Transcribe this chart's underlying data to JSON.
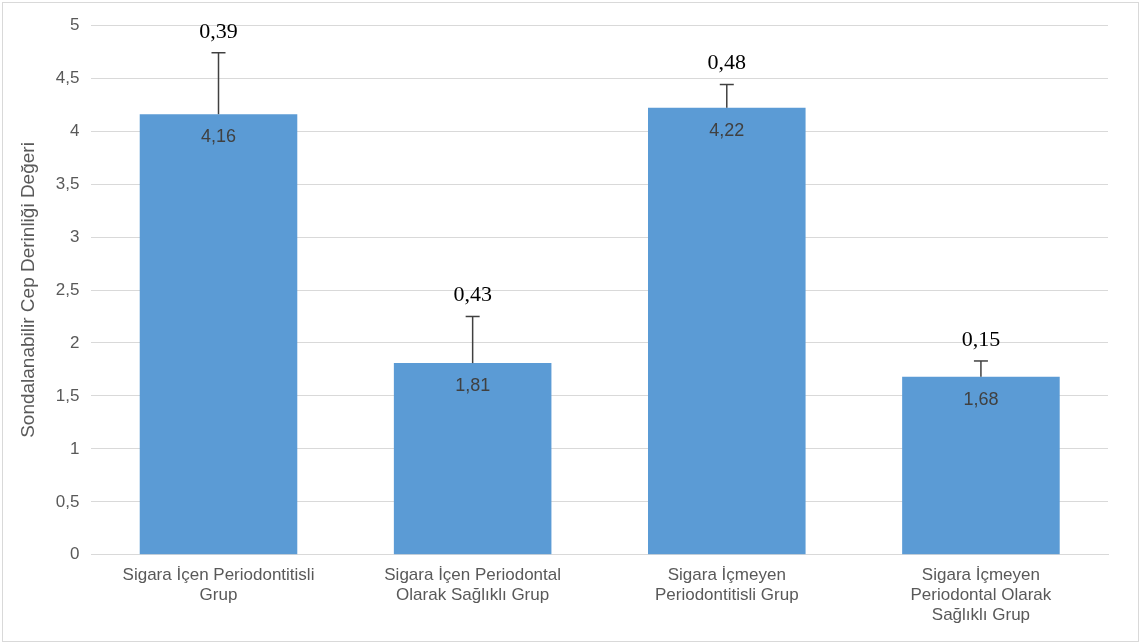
{
  "chart_data": {
    "type": "bar",
    "ylabel": "Sondalanabilir Cep Derinliği Değeri",
    "categories": [
      "Sigara İçen Periodontitisli Grup",
      "Sigara İçen Periodontal Olarak Sağlıklı Grup",
      "Sigara İçmeyen Periodontitisli Grup",
      "Sigara İçmeyen Periodontal Olarak Sağlıklı Grup"
    ],
    "values": [
      4.16,
      1.81,
      4.22,
      1.68
    ],
    "value_labels": [
      "4,16",
      "1,81",
      "4,22",
      "1,68"
    ],
    "color": "#5b9bd5",
    "errors": [
      [
        4.16,
        4.74
      ],
      [
        1.81,
        2.25
      ],
      [
        4.22,
        4.44
      ],
      [
        1.68,
        1.83
      ]
    ],
    "annotations": [
      {
        "text": "0,39",
        "x": "Sigara İçen Periodontitisli Grup",
        "y": 4.74
      },
      {
        "text": "0,43",
        "x": "Sigara İçen Periodontal Olarak Sağlıklı Grup",
        "y": 2.25
      },
      {
        "text": "0,48",
        "x": "Sigara İçmeyen Periodontitisli Grup",
        "y": 4.44
      },
      {
        "text": "0,15",
        "x": "Sigara İçmeyen Periodontal Olarak Sağlıklı Grup",
        "y": 1.83
      }
    ],
    "ylim": [
      0,
      5
    ],
    "yticks": [
      0,
      {
        "value": 0.5,
        "label": "0,5"
      },
      1,
      {
        "value": 1.5,
        "label": "1,5"
      },
      2,
      {
        "value": 2.5,
        "label": "2,5"
      },
      3,
      {
        "value": 3.5,
        "label": "3,5"
      },
      4,
      {
        "value": 4.5,
        "label": "4,5"
      },
      5
    ],
    "grid": "y",
    "legend": false
  }
}
